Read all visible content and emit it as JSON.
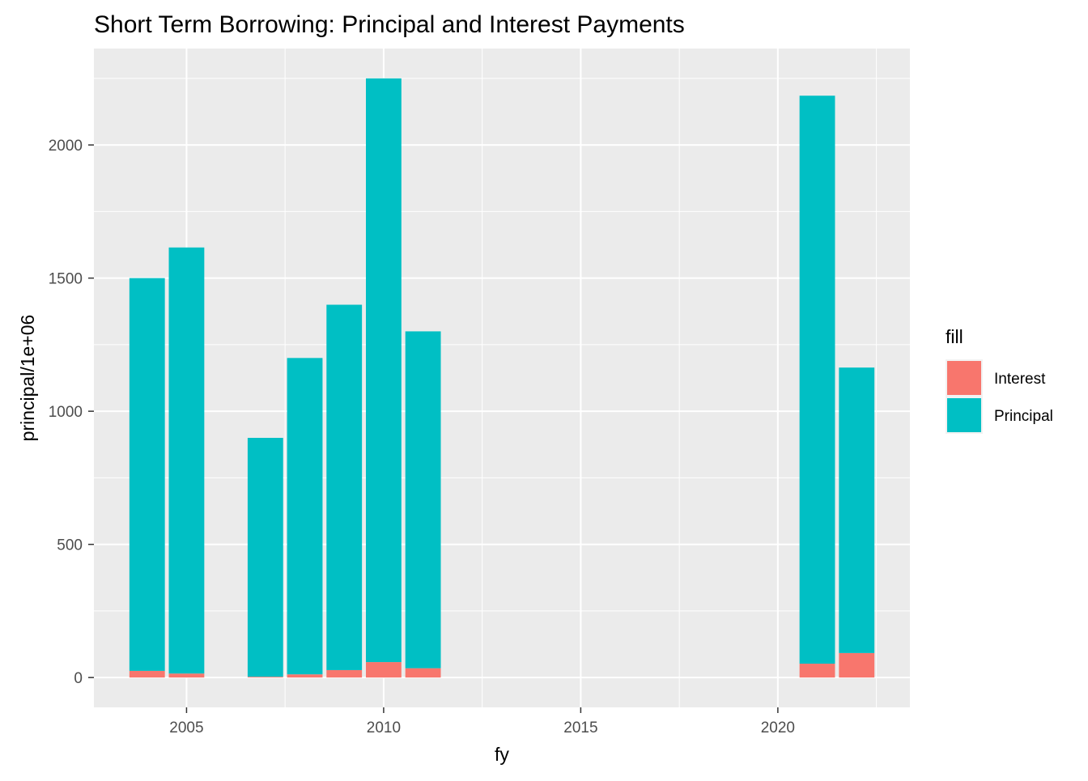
{
  "chart_data": {
    "type": "bar",
    "stacked": true,
    "title": "Short Term Borrowing: Principal and Interest Payments",
    "xlabel": "fy",
    "ylabel": "principal/1e+06",
    "x": [
      2004,
      2005,
      2007,
      2008,
      2009,
      2010,
      2011,
      2021,
      2022
    ],
    "xlim": [
      2002.65,
      2023.35
    ],
    "ylim": [
      -112,
      2362
    ],
    "x_ticks": [
      2005,
      2010,
      2015,
      2020
    ],
    "x_tick_labels": [
      "2005",
      "2010",
      "2015",
      "2020"
    ],
    "y_ticks": [
      0,
      500,
      1000,
      1500,
      2000
    ],
    "y_tick_labels": [
      "0",
      "500",
      "1000",
      "1500",
      "2000"
    ],
    "grid": true,
    "legend_position": "right",
    "legend_title": "fill",
    "series": [
      {
        "name": "Interest",
        "color": "#F8766D",
        "values": [
          25,
          15,
          3,
          12,
          28,
          58,
          35,
          52,
          92
        ]
      },
      {
        "name": "Principal",
        "color": "#00BFC4",
        "values": [
          1475,
          1600,
          897,
          1188,
          1372,
          2192,
          1265,
          2133,
          1072
        ]
      }
    ]
  }
}
